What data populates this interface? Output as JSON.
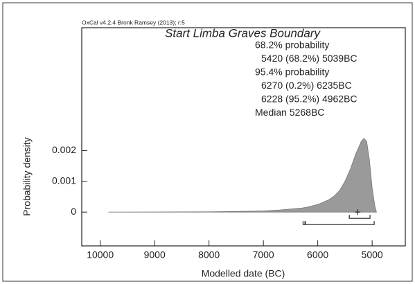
{
  "chart_data": {
    "type": "area",
    "credit": "OxCal v4.2.4 Bronk Ramsey (2013); r:5",
    "title": "Start Limba Graves Boundary",
    "x_label": "Modelled date (BC)",
    "y_label": "Probability density",
    "x": [
      9850,
      9000,
      8000,
      7500,
      7000,
      6700,
      6500,
      6300,
      6200,
      6000,
      5900,
      5800,
      5700,
      5600,
      5500,
      5400,
      5300,
      5250,
      5200,
      5150,
      5100,
      5050,
      5000,
      4950,
      4920
    ],
    "values": [
      0,
      3e-06,
      1e-05,
      2e-05,
      4e-05,
      7e-05,
      0.0001,
      0.00013,
      0.00016,
      0.00025,
      0.00032,
      0.0004,
      0.00052,
      0.0007,
      0.001,
      0.0014,
      0.0019,
      0.0021,
      0.0023,
      0.0024,
      0.0023,
      0.0017,
      0.0008,
      0.0002,
      0
    ],
    "color": "#9a9a9a",
    "xlim": [
      10340,
      4390
    ],
    "xticks": [
      10000,
      9000,
      8000,
      7000,
      6000,
      5000
    ],
    "ylim": [
      -0.0011,
      0.006
    ],
    "yticks": [
      0,
      0.001,
      0.002
    ],
    "ranges": [
      {
        "heading": "68.2% probability",
        "items": [
          {
            "from": 5420,
            "to": 5039,
            "label": "5420 (68.2%) 5039BC"
          }
        ]
      },
      {
        "heading": "95.4% probability",
        "items": [
          {
            "from": 6270,
            "to": 6235,
            "label": "6270 (0.2%) 6235BC"
          },
          {
            "from": 6228,
            "to": 4962,
            "label": "6228 (95.2%) 4962BC"
          }
        ]
      }
    ],
    "median": {
      "value": 5268,
      "label": "Median 5268BC"
    }
  }
}
